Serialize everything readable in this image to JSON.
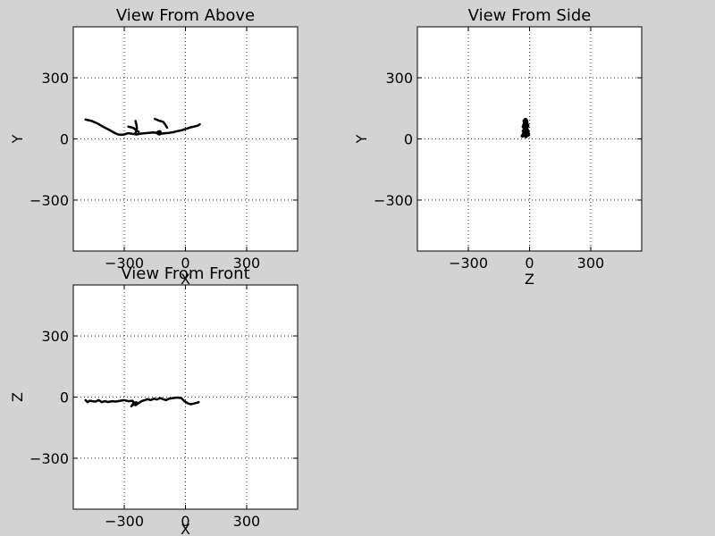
{
  "chart_data": [
    {
      "type": "line",
      "title": "View From Above",
      "xlabel": "X",
      "ylabel": "Y",
      "xlim": [
        -550,
        550
      ],
      "ylim": [
        -550,
        550
      ],
      "xticks": [
        -300,
        0,
        300
      ],
      "yticks": [
        -300,
        0,
        300
      ],
      "xtick_labels": [
        "−300",
        "0",
        "300"
      ],
      "ytick_labels": [
        "−300",
        "0",
        "300"
      ],
      "grid": true,
      "series": [
        {
          "x": [
            -490,
            -460,
            -430,
            -400,
            -370,
            -345,
            -330,
            -315,
            -300,
            -280,
            -260,
            -240,
            -220,
            -200,
            -180,
            -160,
            -140,
            -120,
            -100,
            -80,
            -60,
            -40,
            -20,
            0,
            20,
            40,
            60,
            70
          ],
          "y": [
            95,
            88,
            75,
            58,
            42,
            28,
            22,
            20,
            22,
            28,
            25,
            22,
            26,
            28,
            30,
            32,
            30,
            26,
            28,
            30,
            33,
            38,
            42,
            48,
            55,
            60,
            65,
            72
          ]
        },
        {
          "x": [
            -280,
            -260,
            -250,
            -240,
            -230
          ],
          "y": [
            60,
            55,
            50,
            40,
            35
          ]
        },
        {
          "x": [
            -245,
            -240,
            -238,
            -242,
            -248
          ],
          "y": [
            88,
            70,
            50,
            35,
            25
          ]
        },
        {
          "x": [
            -150,
            -130,
            -110,
            -100,
            -90
          ],
          "y": [
            98,
            90,
            84,
            72,
            55
          ]
        },
        {
          "x": [
            -135,
            -125,
            -120,
            -125,
            -135,
            -140,
            -135
          ],
          "y": [
            35,
            38,
            30,
            22,
            24,
            30,
            35
          ]
        }
      ]
    },
    {
      "type": "scatter",
      "title": "View From Side",
      "xlabel": "Z",
      "ylabel": "Y",
      "xlim": [
        -550,
        550
      ],
      "ylim": [
        -550,
        550
      ],
      "xticks": [
        -300,
        0,
        300
      ],
      "yticks": [
        -300,
        0,
        300
      ],
      "xtick_labels": [
        "−300",
        "0",
        "300"
      ],
      "ytick_labels": [
        "−300",
        "0",
        "300"
      ],
      "grid": true,
      "series": [
        {
          "x": [
            -20,
            -15,
            -25,
            -10,
            -30,
            -18,
            -22,
            -12,
            -28,
            -8,
            -20,
            -15,
            -25,
            -10,
            -35,
            -5,
            -18,
            -22,
            -30,
            -12,
            -20,
            -25,
            -15,
            -10,
            -28,
            -18,
            -22,
            -14,
            -26,
            -16,
            -20,
            -24,
            -30,
            -10,
            -18
          ],
          "y": [
            95,
            85,
            75,
            68,
            60,
            55,
            50,
            45,
            40,
            35,
            30,
            25,
            20,
            18,
            15,
            22,
            28,
            32,
            38,
            42,
            48,
            52,
            58,
            62,
            66,
            72,
            78,
            82,
            88,
            90,
            65,
            40,
            22,
            30,
            12
          ]
        }
      ]
    },
    {
      "type": "line",
      "title": "View From Front",
      "xlabel": "X",
      "ylabel": "Z",
      "xlim": [
        -550,
        550
      ],
      "ylim": [
        -550,
        550
      ],
      "xticks": [
        -300,
        0,
        300
      ],
      "yticks": [
        -300,
        0,
        300
      ],
      "xtick_labels": [
        "−300",
        "0",
        "300"
      ],
      "ytick_labels": [
        "−300",
        "0",
        "300"
      ],
      "grid": true,
      "series": [
        {
          "x": [
            -490,
            -480,
            -470,
            -455,
            -440,
            -425,
            -410,
            -395,
            -380,
            -360,
            -340,
            -320,
            -300,
            -280,
            -260,
            -245,
            -230,
            -215,
            -200,
            -185,
            -170,
            -155,
            -140,
            -125,
            -110,
            -95,
            -80,
            -60,
            -40,
            -20,
            -5,
            10,
            25,
            40,
            55,
            65
          ],
          "y": [
            -15,
            -25,
            -18,
            -20,
            -22,
            -15,
            -25,
            -20,
            -24,
            -20,
            -22,
            -18,
            -15,
            -20,
            -18,
            -40,
            -30,
            -20,
            -15,
            -10,
            -15,
            -8,
            -12,
            -5,
            -10,
            -15,
            -8,
            -5,
            -2,
            -5,
            -20,
            -30,
            -35,
            -32,
            -28,
            -25
          ]
        },
        {
          "x": [
            -260,
            -250,
            -240,
            -255,
            -265
          ],
          "y": [
            -40,
            -35,
            -25,
            -30,
            -45
          ]
        }
      ]
    }
  ]
}
